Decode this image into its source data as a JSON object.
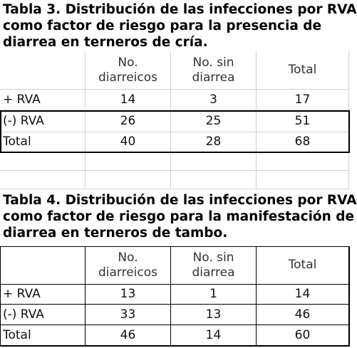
{
  "tables": [
    {
      "title": [
        "Tabla 3. Distribución de las infecciones por RVA",
        "como factor de riesgo para la presencia de",
        "diarrea en terneros de cría."
      ],
      "columns": [
        "No. diarreicos",
        "No. sin diarrea",
        "Total"
      ],
      "rows": [
        [
          "+ RVA",
          14,
          3,
          17
        ],
        [
          "(-) RVA",
          26,
          25,
          51
        ],
        [
          "Total",
          40,
          28,
          68
        ]
      ]
    },
    {
      "title": [
        "Tabla 4. Distribución de las infecciones por RVA",
        "como factor de riesgo para la manifestación de",
        "diarrea en terneros de tambo."
      ],
      "columns": [
        "No. diarreicos",
        "No. sin diarrea",
        "Total"
      ],
      "rows": [
        [
          "+ RVA",
          13,
          1,
          14
        ],
        [
          "(-) RVA",
          33,
          13,
          46
        ],
        [
          "Total",
          46,
          14,
          60
        ]
      ]
    }
  ]
}
